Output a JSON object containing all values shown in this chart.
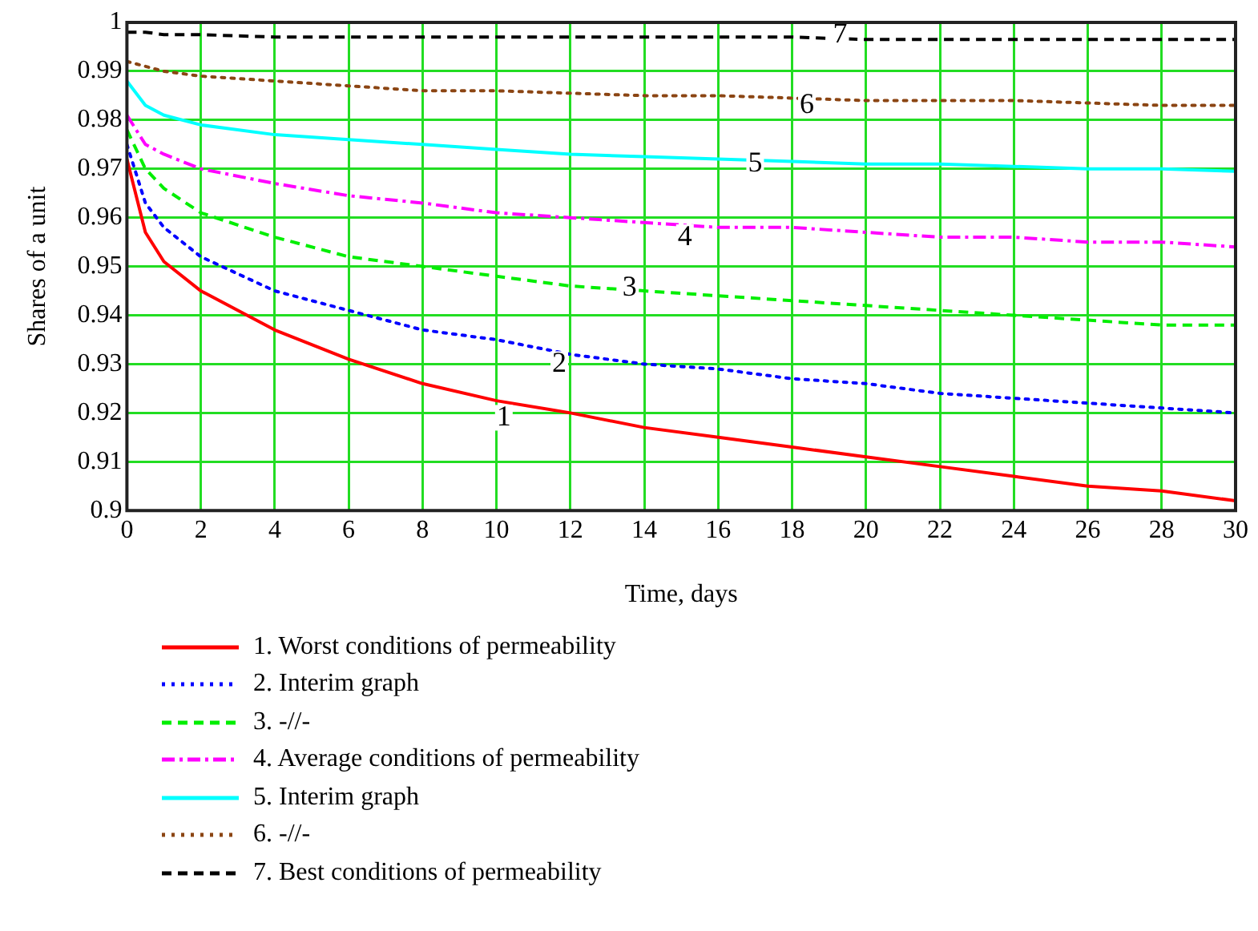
{
  "chart_data": {
    "type": "line",
    "xlabel": "Time, days",
    "ylabel": "Shares of a unit",
    "x": [
      0,
      0.5,
      1,
      2,
      4,
      6,
      8,
      10,
      12,
      14,
      16,
      18,
      20,
      22,
      24,
      26,
      28,
      30
    ],
    "xlim": [
      0,
      30
    ],
    "xticks": [
      0,
      2,
      4,
      6,
      8,
      10,
      12,
      14,
      16,
      18,
      20,
      22,
      24,
      26,
      28,
      30
    ],
    "ylim": [
      0.9,
      1
    ],
    "yticks": [
      0.9,
      0.91,
      0.92,
      0.93,
      0.94,
      0.95,
      0.96,
      0.97,
      0.98,
      0.99,
      1
    ],
    "grid": true,
    "legend": "bottom",
    "marker": "none",
    "series": [
      {
        "name": "1. Worst conditions of permeability",
        "color": "#ff0000",
        "line_style": "solid",
        "values": [
          0.972,
          0.957,
          0.951,
          0.945,
          0.937,
          0.931,
          0.926,
          0.9225,
          0.92,
          0.917,
          0.915,
          0.913,
          0.911,
          0.909,
          0.907,
          0.905,
          0.904,
          0.902
        ]
      },
      {
        "name": "2. Interim graph",
        "color": "#0000ff",
        "line_style": "dotted",
        "values": [
          0.975,
          0.963,
          0.958,
          0.952,
          0.945,
          0.941,
          0.937,
          0.935,
          0.932,
          0.93,
          0.929,
          0.927,
          0.926,
          0.924,
          0.923,
          0.922,
          0.921,
          0.92
        ]
      },
      {
        "name": "3. -//-",
        "color": "#00ee00",
        "line_style": "dashed",
        "values": [
          0.978,
          0.97,
          0.966,
          0.961,
          0.956,
          0.952,
          0.95,
          0.948,
          0.946,
          0.945,
          0.944,
          0.943,
          0.942,
          0.941,
          0.94,
          0.939,
          0.938,
          0.938
        ]
      },
      {
        "name": "4. Average conditions of permeability",
        "color": "#ff00ff",
        "line_style": "dashdot",
        "values": [
          0.981,
          0.975,
          0.973,
          0.97,
          0.967,
          0.9645,
          0.963,
          0.961,
          0.96,
          0.959,
          0.958,
          0.958,
          0.957,
          0.956,
          0.956,
          0.955,
          0.955,
          0.954
        ]
      },
      {
        "name": "5. Interim graph",
        "color": "#00ffff",
        "line_style": "solid",
        "values": [
          0.988,
          0.983,
          0.981,
          0.979,
          0.977,
          0.976,
          0.975,
          0.974,
          0.973,
          0.9725,
          0.972,
          0.9715,
          0.971,
          0.971,
          0.9705,
          0.97,
          0.97,
          0.9695
        ]
      },
      {
        "name": "6. -//-",
        "color": "#8b4513",
        "line_style": "dotted",
        "values": [
          0.992,
          0.991,
          0.99,
          0.989,
          0.988,
          0.987,
          0.986,
          0.986,
          0.9855,
          0.985,
          0.985,
          0.9845,
          0.984,
          0.984,
          0.984,
          0.9835,
          0.983,
          0.983
        ]
      },
      {
        "name": "7. Best conditions of permeability",
        "color": "#000000",
        "line_style": "dashed",
        "values": [
          0.998,
          0.998,
          0.9975,
          0.9975,
          0.997,
          0.997,
          0.997,
          0.997,
          0.997,
          0.997,
          0.997,
          0.997,
          0.9965,
          0.9965,
          0.9965,
          0.9965,
          0.9965,
          0.9965
        ]
      }
    ],
    "annotations": [
      {
        "text": "1",
        "x": 10.2,
        "y": 0.919
      },
      {
        "text": "2",
        "x": 11.7,
        "y": 0.93
      },
      {
        "text": "3",
        "x": 13.6,
        "y": 0.9455
      },
      {
        "text": "4",
        "x": 15.1,
        "y": 0.956
      },
      {
        "text": "5",
        "x": 17,
        "y": 0.971
      },
      {
        "text": "6",
        "x": 18.4,
        "y": 0.983
      },
      {
        "text": "7",
        "x": 19.3,
        "y": 0.9975
      }
    ]
  }
}
